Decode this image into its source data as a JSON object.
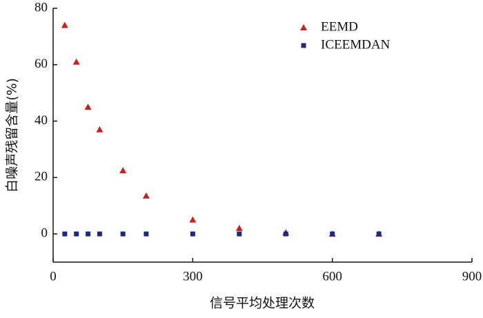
{
  "chart_data": {
    "type": "scatter",
    "xlabel": "信号平均处理次数",
    "ylabel": "白噪声残留含量(%)",
    "xlim": [
      0,
      900
    ],
    "xticks": [
      0,
      300,
      600,
      900
    ],
    "ylim": [
      -10,
      80
    ],
    "yticks": [
      0,
      20,
      40,
      60,
      80
    ],
    "grid": false,
    "legend": "upper right",
    "series": [
      {
        "name": "EEMD",
        "color": "#cc1f1f",
        "marker": "triangle",
        "x": [
          25,
          50,
          75,
          100,
          150,
          200,
          300,
          400,
          500,
          600,
          700
        ],
        "values": [
          74,
          61,
          45,
          37,
          22.5,
          13.5,
          5,
          2,
          0.5,
          0,
          0
        ]
      },
      {
        "name": "ICEEMDAN",
        "color": "#1a2a80",
        "marker": "square",
        "x": [
          25,
          50,
          75,
          100,
          150,
          200,
          300,
          400,
          500,
          600,
          700
        ],
        "values": [
          0,
          0,
          0,
          0,
          0,
          0,
          0,
          0,
          0,
          0,
          0
        ]
      }
    ]
  }
}
